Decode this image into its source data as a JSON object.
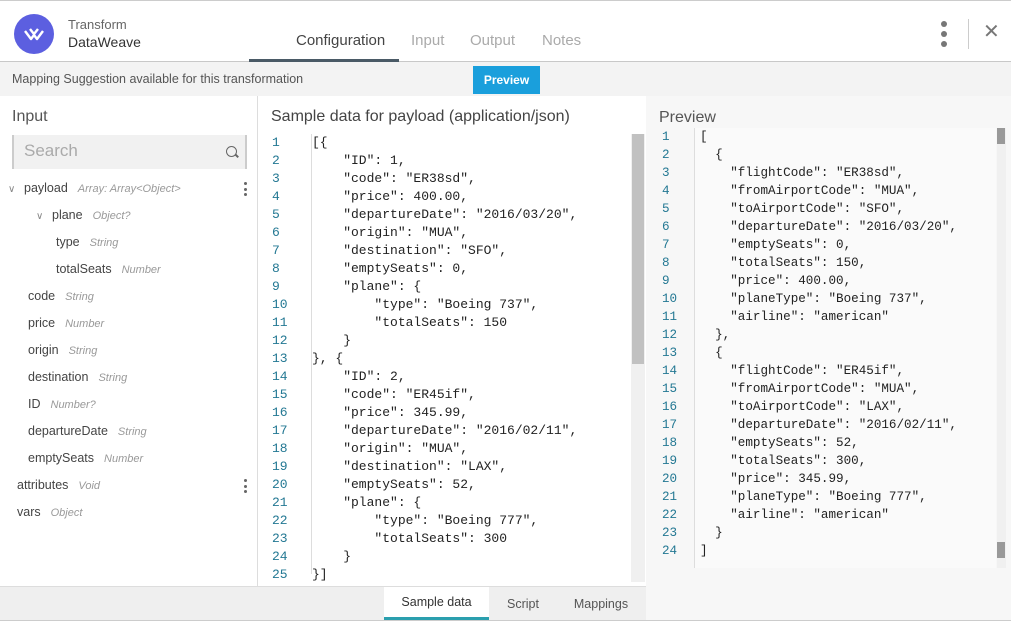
{
  "header": {
    "subtitle": "Transform",
    "title": "DataWeave",
    "tabs": [
      "Configuration",
      "Input",
      "Output",
      "Notes"
    ],
    "active_tab": "Configuration",
    "menu_icon": "kebab-icon",
    "close_icon": "close-icon",
    "close_glyph": "✕"
  },
  "suggestion": {
    "text": "Mapping Suggestion available for this transformation",
    "button": "Preview",
    "button_color": "#1a9fdc"
  },
  "input_panel": {
    "title": "Input",
    "search_placeholder": "Search",
    "tree": [
      {
        "name": "payload",
        "type": "Array: Array<Object>",
        "level": 0,
        "expanded": true,
        "menu": true
      },
      {
        "name": "plane",
        "type": "Object?",
        "level": 2,
        "expanded": true
      },
      {
        "name": "type",
        "type": "String",
        "level": 3
      },
      {
        "name": "totalSeats",
        "type": "Number",
        "level": 3
      },
      {
        "name": "code",
        "type": "String",
        "level": 1
      },
      {
        "name": "price",
        "type": "Number",
        "level": 1
      },
      {
        "name": "origin",
        "type": "String",
        "level": 1
      },
      {
        "name": "destination",
        "type": "String",
        "level": 1
      },
      {
        "name": "ID",
        "type": "Number?",
        "level": 1
      },
      {
        "name": "departureDate",
        "type": "String",
        "level": 1
      },
      {
        "name": "emptySeats",
        "type": "Number",
        "level": 1
      },
      {
        "name": "attributes",
        "type": "Void",
        "level": 0,
        "menu": true
      },
      {
        "name": "vars",
        "type": "Object",
        "level": 0
      }
    ]
  },
  "sample": {
    "title": "Sample data for payload (application/json)",
    "lines": [
      "[{",
      "    \"ID\": 1,",
      "    \"code\": \"ER38sd\",",
      "    \"price\": 400.00,",
      "    \"departureDate\": \"2016/03/20\",",
      "    \"origin\": \"MUA\",",
      "    \"destination\": \"SFO\",",
      "    \"emptySeats\": 0,",
      "    \"plane\": {",
      "        \"type\": \"Boeing 737\",",
      "        \"totalSeats\": 150",
      "    }",
      "}, {",
      "    \"ID\": 2,",
      "    \"code\": \"ER45if\",",
      "    \"price\": 345.99,",
      "    \"departureDate\": \"2016/02/11\",",
      "    \"origin\": \"MUA\",",
      "    \"destination\": \"LAX\",",
      "    \"emptySeats\": 52,",
      "    \"plane\": {",
      "        \"type\": \"Boeing 777\",",
      "        \"totalSeats\": 300",
      "    }",
      "}]"
    ]
  },
  "bottom_tabs": {
    "items": [
      "Sample data",
      "Script",
      "Mappings"
    ],
    "active": "Sample data"
  },
  "preview": {
    "title": "Preview",
    "lines": [
      "[",
      "  {",
      "    \"flightCode\": \"ER38sd\",",
      "    \"fromAirportCode\": \"MUA\",",
      "    \"toAirportCode\": \"SFO\",",
      "    \"departureDate\": \"2016/03/20\",",
      "    \"emptySeats\": 0,",
      "    \"totalSeats\": 150,",
      "    \"price\": 400.00,",
      "    \"planeType\": \"Boeing 737\",",
      "    \"airline\": \"american\"",
      "  },",
      "  {",
      "    \"flightCode\": \"ER45if\",",
      "    \"fromAirportCode\": \"MUA\",",
      "    \"toAirportCode\": \"LAX\",",
      "    \"departureDate\": \"2016/02/11\",",
      "    \"emptySeats\": 52,",
      "    \"totalSeats\": 300,",
      "    \"price\": 345.99,",
      "    \"planeType\": \"Boeing 777\",",
      "    \"airline\": \"american\"",
      "  }",
      "]"
    ]
  },
  "colors": {
    "json_key": "#a31515",
    "json_string": "#0451a5",
    "json_number": "#098658",
    "line_number": "#237893",
    "logo": "#5c5fe0"
  }
}
